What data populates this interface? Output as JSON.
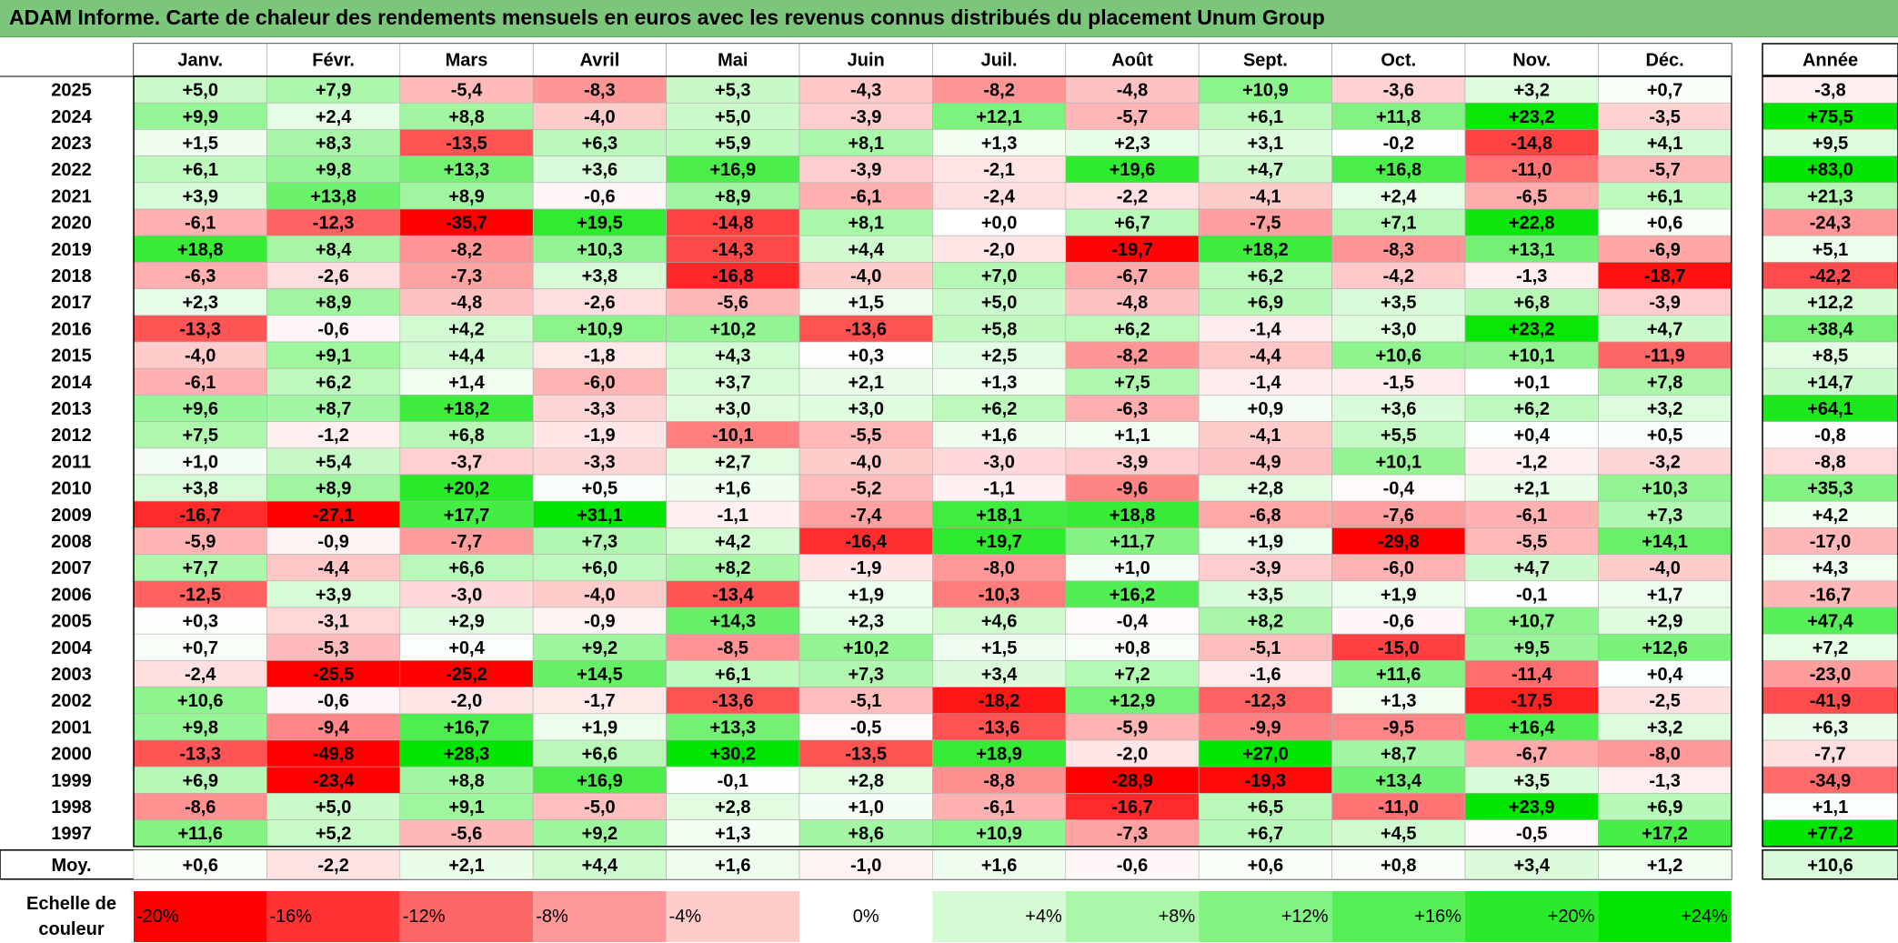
{
  "title": "ADAM Informe. Carte de chaleur des rendements mensuels en euros avec les revenus connus distribués du placement Unum Group",
  "chart_data": {
    "type": "heatmap",
    "months": [
      "Janv.",
      "Févr.",
      "Mars",
      "Avril",
      "Mai",
      "Juin",
      "Juil.",
      "Août",
      "Sept.",
      "Oct.",
      "Nov.",
      "Déc."
    ],
    "annual_label": "Année",
    "average_label": "Moy.",
    "rows": [
      {
        "year": "2025",
        "values": [
          "+5,0",
          "+7,9",
          "-5,4",
          "-8,3",
          "+5,3",
          "-4,3",
          "-8,2",
          "-4,8",
          "+10,9",
          "-3,6",
          "+3,2",
          "+0,7"
        ],
        "annual": "-3,8"
      },
      {
        "year": "2024",
        "values": [
          "+9,9",
          "+2,4",
          "+8,8",
          "-4,0",
          "+5,0",
          "-3,9",
          "+12,1",
          "-5,7",
          "+6,1",
          "+11,8",
          "+23,2",
          "-3,5"
        ],
        "annual": "+75,5"
      },
      {
        "year": "2023",
        "values": [
          "+1,5",
          "+8,3",
          "-13,5",
          "+6,3",
          "+5,9",
          "+8,1",
          "+1,3",
          "+2,3",
          "+3,1",
          "-0,2",
          "-14,8",
          "+4,1"
        ],
        "annual": "+9,5"
      },
      {
        "year": "2022",
        "values": [
          "+6,1",
          "+9,8",
          "+13,3",
          "+3,6",
          "+16,9",
          "-3,9",
          "-2,1",
          "+19,6",
          "+4,7",
          "+16,8",
          "-11,0",
          "-5,7"
        ],
        "annual": "+83,0"
      },
      {
        "year": "2021",
        "values": [
          "+3,9",
          "+13,8",
          "+8,9",
          "-0,6",
          "+8,9",
          "-6,1",
          "-2,4",
          "-2,2",
          "-4,1",
          "+2,4",
          "-6,5",
          "+6,1"
        ],
        "annual": "+21,3"
      },
      {
        "year": "2020",
        "values": [
          "-6,1",
          "-12,3",
          "-35,7",
          "+19,5",
          "-14,8",
          "+8,1",
          "+0,0",
          "+6,7",
          "-7,5",
          "+7,1",
          "+22,8",
          "+0,6"
        ],
        "annual": "-24,3"
      },
      {
        "year": "2019",
        "values": [
          "+18,8",
          "+8,4",
          "-8,2",
          "+10,3",
          "-14,3",
          "+4,4",
          "-2,0",
          "-19,7",
          "+18,2",
          "-8,3",
          "+13,1",
          "-6,9"
        ],
        "annual": "+5,1"
      },
      {
        "year": "2018",
        "values": [
          "-6,3",
          "-2,6",
          "-7,3",
          "+3,8",
          "-16,8",
          "-4,0",
          "+7,0",
          "-6,7",
          "+6,2",
          "-4,2",
          "-1,3",
          "-18,7"
        ],
        "annual": "-42,2"
      },
      {
        "year": "2017",
        "values": [
          "+2,3",
          "+8,9",
          "-4,8",
          "-2,6",
          "-5,6",
          "+1,5",
          "+5,0",
          "-4,8",
          "+6,9",
          "+3,5",
          "+6,8",
          "-3,9"
        ],
        "annual": "+12,2"
      },
      {
        "year": "2016",
        "values": [
          "-13,3",
          "-0,6",
          "+4,2",
          "+10,9",
          "+10,2",
          "-13,6",
          "+5,8",
          "+6,2",
          "-1,4",
          "+3,0",
          "+23,2",
          "+4,7"
        ],
        "annual": "+38,4"
      },
      {
        "year": "2015",
        "values": [
          "-4,0",
          "+9,1",
          "+4,4",
          "-1,8",
          "+4,3",
          "+0,3",
          "+2,5",
          "-8,2",
          "-4,4",
          "+10,6",
          "+10,1",
          "-11,9"
        ],
        "annual": "+8,5"
      },
      {
        "year": "2014",
        "values": [
          "-6,1",
          "+6,2",
          "+1,4",
          "-6,0",
          "+3,7",
          "+2,1",
          "+1,3",
          "+7,5",
          "-1,4",
          "-1,5",
          "+0,1",
          "+7,8"
        ],
        "annual": "+14,7"
      },
      {
        "year": "2013",
        "values": [
          "+9,6",
          "+8,7",
          "+18,2",
          "-3,3",
          "+3,0",
          "+3,0",
          "+6,2",
          "-6,3",
          "+0,9",
          "+3,6",
          "+6,2",
          "+3,2"
        ],
        "annual": "+64,1"
      },
      {
        "year": "2012",
        "values": [
          "+7,5",
          "-1,2",
          "+6,8",
          "-1,9",
          "-10,1",
          "-5,5",
          "+1,6",
          "+1,1",
          "-4,1",
          "+5,5",
          "+0,4",
          "+0,5"
        ],
        "annual": "-0,8"
      },
      {
        "year": "2011",
        "values": [
          "+1,0",
          "+5,4",
          "-3,7",
          "-3,3",
          "+2,7",
          "-4,0",
          "-3,0",
          "-3,9",
          "-4,9",
          "+10,1",
          "-1,2",
          "-3,2"
        ],
        "annual": "-8,8"
      },
      {
        "year": "2010",
        "values": [
          "+3,8",
          "+8,9",
          "+20,2",
          "+0,5",
          "+1,6",
          "-5,2",
          "-1,1",
          "-9,6",
          "+2,8",
          "-0,4",
          "+2,1",
          "+10,3"
        ],
        "annual": "+35,3"
      },
      {
        "year": "2009",
        "values": [
          "-16,7",
          "-27,1",
          "+17,7",
          "+31,1",
          "-1,1",
          "-7,4",
          "+18,1",
          "+18,8",
          "-6,8",
          "-7,6",
          "-6,1",
          "+7,3"
        ],
        "annual": "+4,2"
      },
      {
        "year": "2008",
        "values": [
          "-5,9",
          "-0,9",
          "-7,7",
          "+7,3",
          "+4,2",
          "-16,4",
          "+19,7",
          "+11,7",
          "+1,9",
          "-29,8",
          "-5,5",
          "+14,1"
        ],
        "annual": "-17,0"
      },
      {
        "year": "2007",
        "values": [
          "+7,7",
          "-4,4",
          "+6,6",
          "+6,0",
          "+8,2",
          "-1,9",
          "-8,0",
          "+1,0",
          "-3,9",
          "-6,0",
          "+4,7",
          "-4,0"
        ],
        "annual": "+4,3"
      },
      {
        "year": "2006",
        "values": [
          "-12,5",
          "+3,9",
          "-3,0",
          "-4,0",
          "-13,4",
          "+1,9",
          "-10,3",
          "+16,2",
          "+3,5",
          "+1,9",
          "-0,1",
          "+1,7"
        ],
        "annual": "-16,7"
      },
      {
        "year": "2005",
        "values": [
          "+0,3",
          "-3,1",
          "+2,9",
          "-0,9",
          "+14,3",
          "+2,3",
          "+4,6",
          "-0,4",
          "+8,2",
          "-0,6",
          "+10,7",
          "+2,9"
        ],
        "annual": "+47,4"
      },
      {
        "year": "2004",
        "values": [
          "+0,7",
          "-5,3",
          "+0,4",
          "+9,2",
          "-8,5",
          "+10,2",
          "+1,5",
          "+0,8",
          "-5,1",
          "-15,0",
          "+9,5",
          "+12,6"
        ],
        "annual": "+7,2"
      },
      {
        "year": "2003",
        "values": [
          "-2,4",
          "-25,5",
          "-25,2",
          "+14,5",
          "+6,1",
          "+7,3",
          "+3,4",
          "+7,2",
          "-1,6",
          "+11,6",
          "-11,4",
          "+0,4"
        ],
        "annual": "-23,0"
      },
      {
        "year": "2002",
        "values": [
          "+10,6",
          "-0,6",
          "-2,0",
          "-1,7",
          "-13,6",
          "-5,1",
          "-18,2",
          "+12,9",
          "-12,3",
          "+1,3",
          "-17,5",
          "-2,5"
        ],
        "annual": "-41,9"
      },
      {
        "year": "2001",
        "values": [
          "+9,8",
          "-9,4",
          "+16,7",
          "+1,9",
          "+13,3",
          "-0,5",
          "-13,6",
          "-5,9",
          "-9,9",
          "-9,5",
          "+16,4",
          "+3,2"
        ],
        "annual": "+6,3"
      },
      {
        "year": "2000",
        "values": [
          "-13,3",
          "-49,8",
          "+28,3",
          "+6,6",
          "+30,2",
          "-13,5",
          "+18,9",
          "-2,0",
          "+27,0",
          "+8,7",
          "-6,7",
          "-8,0"
        ],
        "annual": "-7,7"
      },
      {
        "year": "1999",
        "values": [
          "+6,9",
          "-23,4",
          "+8,8",
          "+16,9",
          "-0,1",
          "+2,8",
          "-8,8",
          "-28,9",
          "-19,3",
          "+13,4",
          "+3,5",
          "-1,3"
        ],
        "annual": "-34,9"
      },
      {
        "year": "1998",
        "values": [
          "-8,6",
          "+5,0",
          "+9,1",
          "-5,0",
          "+2,8",
          "+1,0",
          "-6,1",
          "-16,7",
          "+6,5",
          "-11,0",
          "+23,9",
          "+6,9"
        ],
        "annual": "+1,1"
      },
      {
        "year": "1997",
        "values": [
          "+11,6",
          "+5,2",
          "-5,6",
          "+9,2",
          "+1,3",
          "+8,6",
          "+10,9",
          "-7,3",
          "+6,7",
          "+4,5",
          "-0,5",
          "+17,2"
        ],
        "annual": "+77,2"
      }
    ],
    "average": {
      "values": [
        "+0,6",
        "-2,2",
        "+2,1",
        "+4,4",
        "+1,6",
        "-1,0",
        "+1,6",
        "-0,6",
        "+0,6",
        "+0,8",
        "+3,4",
        "+1,2"
      ],
      "annual": "+10,6"
    },
    "legend": {
      "label_line1": "Echelle de",
      "label_line2": "couleur",
      "stops": [
        "-20%",
        "-16%",
        "-12%",
        "-8%",
        "-4%",
        "0%",
        "+4%",
        "+8%",
        "+12%",
        "+16%",
        "+20%",
        "+24%"
      ],
      "stop_values": [
        -20,
        -16,
        -12,
        -8,
        -4,
        0,
        4,
        8,
        12,
        16,
        20,
        24
      ]
    },
    "colors": {
      "negative": "#ff0000",
      "neutral": "#ffffff",
      "positive": "#00e600"
    }
  }
}
